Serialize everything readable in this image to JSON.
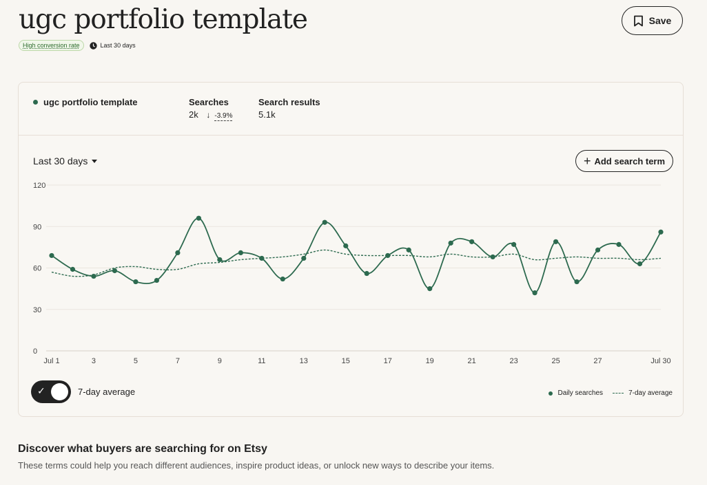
{
  "header": {
    "title": "ugc portfolio template",
    "save_label": "Save",
    "badge": "High conversion rate",
    "timeframe": "Last 30 days"
  },
  "card": {
    "term": "ugc portfolio template",
    "searches_label": "Searches",
    "searches_value": "2k",
    "searches_change": "-3.9%",
    "results_label": "Search results",
    "results_value": "5.1k",
    "range_label": "Last 30 days",
    "add_term_label": "Add search term",
    "toggle_label": "7-day average",
    "toggle_on": true
  },
  "colors": {
    "accent": "#2d6a4f",
    "background": "#f8f6f2"
  },
  "chart_data": {
    "type": "line",
    "ylim": [
      0,
      120
    ],
    "yticks": [
      0,
      30,
      60,
      90,
      120
    ],
    "x": [
      1,
      2,
      3,
      4,
      5,
      6,
      7,
      8,
      9,
      10,
      11,
      12,
      13,
      14,
      15,
      16,
      17,
      18,
      19,
      20,
      21,
      22,
      23,
      24,
      25,
      26,
      27,
      28,
      29,
      30
    ],
    "xtick_labels": [
      "Jul 1",
      "3",
      "5",
      "7",
      "9",
      "11",
      "13",
      "15",
      "17",
      "19",
      "21",
      "23",
      "25",
      "27",
      "Jul 30"
    ],
    "xtick_positions": [
      1,
      3,
      5,
      7,
      9,
      11,
      13,
      15,
      17,
      19,
      21,
      23,
      25,
      27,
      30
    ],
    "series": [
      {
        "name": "Daily searches",
        "style": "solid-markers",
        "values": [
          69,
          59,
          54,
          58,
          50,
          51,
          71,
          96,
          66,
          71,
          67,
          52,
          67,
          93,
          76,
          56,
          69,
          73,
          45,
          78,
          79,
          68,
          77,
          42,
          79,
          50,
          73,
          77,
          63,
          86
        ]
      },
      {
        "name": "7-day average",
        "style": "dashed",
        "values": [
          57,
          54,
          55,
          60,
          61,
          59,
          59,
          63,
          64,
          66,
          67,
          68,
          70,
          73,
          70,
          69,
          69,
          69,
          68,
          70,
          68,
          68,
          70,
          66,
          67,
          68,
          67,
          67,
          66,
          67
        ]
      }
    ]
  },
  "discover": {
    "title": "Discover what buyers are searching for on Etsy",
    "description": "These terms could help you reach different audiences, inspire product ideas, or unlock new ways to describe your items."
  }
}
